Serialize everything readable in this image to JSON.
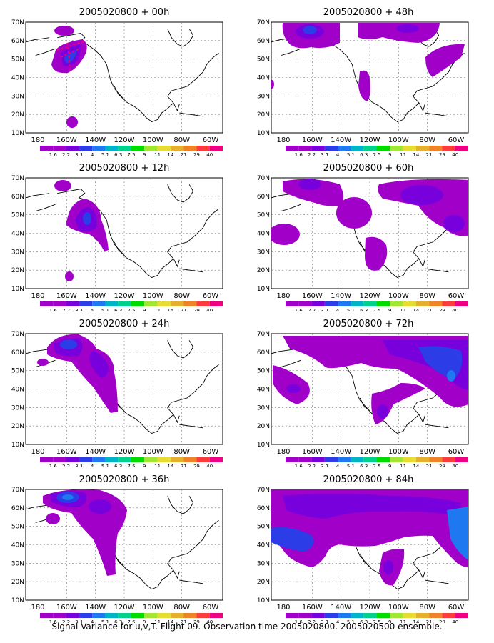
{
  "caption": "Signal Variance for u,v,T. Flight 09. Observation time 2005020800. 2005020500 ensemble.",
  "x_ticks": [
    "180",
    "160W",
    "140W",
    "120W",
    "100W",
    "80W",
    "60W"
  ],
  "y_ticks": [
    "70N",
    "60N",
    "50N",
    "40N",
    "30N",
    "20N",
    "10N"
  ],
  "colorbar": {
    "labels": [
      "1.6",
      "2.2",
      "3.1",
      "4",
      "5.1",
      "6.3",
      "7.5",
      "9",
      "11",
      "14",
      "21",
      "29",
      "40"
    ],
    "colors": [
      "#a000c8",
      "#7800dc",
      "#2c3ce6",
      "#1e78f0",
      "#00b4c8",
      "#00d28c",
      "#00dc00",
      "#a0e632",
      "#e6dc32",
      "#e6af2d",
      "#f08228",
      "#fa3c3c",
      "#f00082"
    ]
  },
  "panels": [
    {
      "title": "2005020800 + 00h"
    },
    {
      "title": "2005020800 + 48h"
    },
    {
      "title": "2005020800 + 12h"
    },
    {
      "title": "2005020800 + 60h"
    },
    {
      "title": "2005020800 + 24h"
    },
    {
      "title": "2005020800 + 72h"
    },
    {
      "title": "2005020800 + 36h"
    },
    {
      "title": "2005020800 + 84h"
    }
  ]
}
